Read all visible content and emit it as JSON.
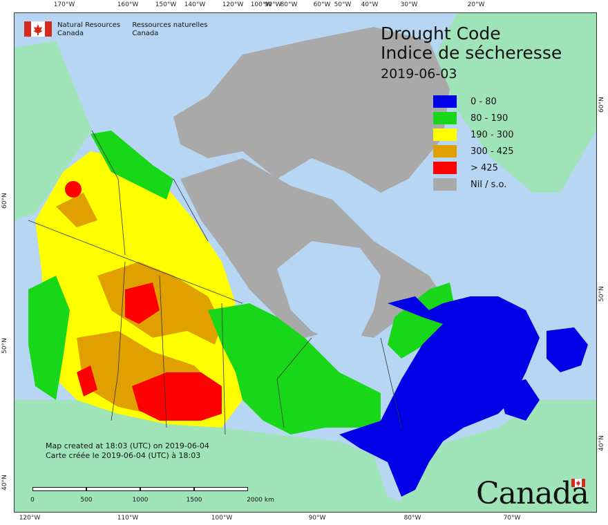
{
  "agency": {
    "en_line1": "Natural Resources",
    "en_line2": "Canada",
    "fr_line1": "Ressources naturelles",
    "fr_line2": "Canada"
  },
  "title": {
    "en": "Drought Code",
    "fr": "Indice de sécheresse",
    "date": "2019-06-03"
  },
  "legend": [
    {
      "label": "0 - 80",
      "color": "#0000e6"
    },
    {
      "label": "80 - 190",
      "color": "#18d718"
    },
    {
      "label": "190 - 300",
      "color": "#ffff00"
    },
    {
      "label": "300 - 425",
      "color": "#e0a000"
    },
    {
      "label": "> 425",
      "color": "#ff0000"
    },
    {
      "label": "Nil / s.o.",
      "color": "#a9a9a9"
    }
  ],
  "credits": {
    "line1": "Map created at 18:03 (UTC) on 2019-06-04",
    "line2": "Carte créée le 2019-06-04 (UTC) à 18:03"
  },
  "scalebar": {
    "labels": [
      "0",
      "500",
      "1000",
      "1500",
      "2000 km"
    ]
  },
  "wordmark": "Canada",
  "graticule": {
    "top": [
      "170°W",
      "160°W",
      "150°W",
      "140°W",
      "120°W",
      "100°W",
      "90°W",
      "80°W",
      "60°W",
      "50°W",
      "40°W",
      "30°W",
      "20°W"
    ],
    "bottom": [
      "120°W",
      "110°W",
      "100°W",
      "90°W",
      "80°W",
      "70°W"
    ],
    "left": [
      "60°N",
      "50°N",
      "40°N"
    ],
    "right": [
      "60°N",
      "50°N",
      "40°N"
    ]
  },
  "colors": {
    "ocean": "#b7d6f3",
    "land_outside": "#9fe3b8",
    "nodata": "#a9a9a9"
  }
}
